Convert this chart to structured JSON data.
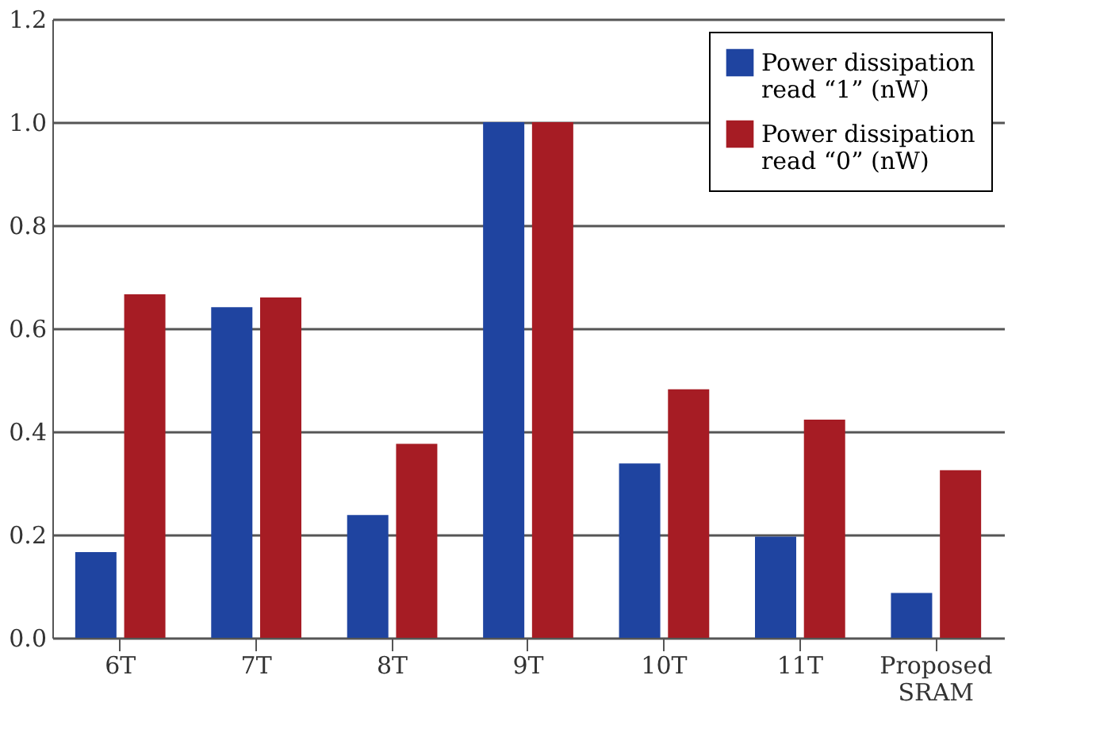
{
  "chart_data": {
    "type": "bar",
    "categories": [
      "6T",
      "7T",
      "8T",
      "9T",
      "10T",
      "11T",
      "Proposed SRAM"
    ],
    "series": [
      {
        "name": "Power dissipation read “1” (nW)",
        "color": "#1f44a0",
        "values": [
          0.166,
          0.641,
          0.238,
          1.0,
          0.338,
          0.196,
          0.087
        ]
      },
      {
        "name": "Power dissipation read “0” (nW)",
        "color": "#a61c24",
        "values": [
          0.666,
          0.66,
          0.376,
          1.0,
          0.482,
          0.423,
          0.325
        ]
      }
    ],
    "ylim": [
      0,
      1.2
    ],
    "yticks": [
      {
        "value": 0,
        "label": "0.0"
      },
      0.2,
      0.4,
      0.6,
      0.8,
      {
        "value": 1.0,
        "label": "1.0"
      },
      1.2
    ],
    "grid": "y",
    "legend": "top right"
  }
}
